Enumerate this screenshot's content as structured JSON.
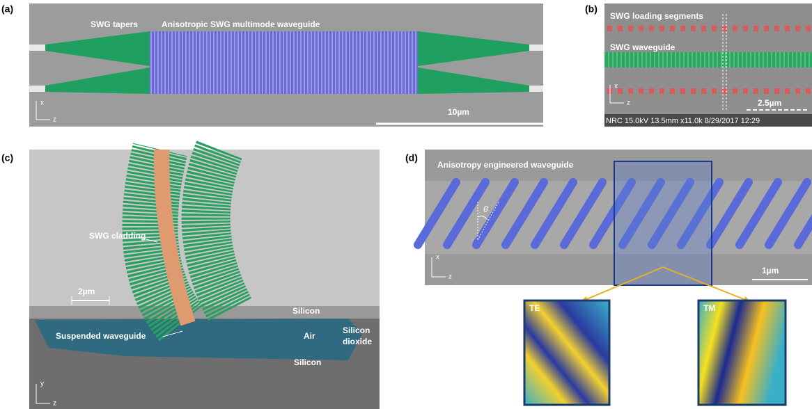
{
  "panel_a": {
    "label": "(a)",
    "tapers": "SWG tapers",
    "waveguide": "Anisotropic  SWG multimode waveguide",
    "scale": "10µm",
    "axis_vertical": "x",
    "axis_horizontal": "z"
  },
  "panel_b": {
    "label": "(b)",
    "loading": "SWG loading segments",
    "waveguide": "SWG waveguide",
    "scale": "2.5µm",
    "axis_vertical": "x",
    "axis_horizontal": "z",
    "footer": "NRC 15.0kV 13.5mm x11.0k 8/29/2017 12:29"
  },
  "panel_c": {
    "label": "(c)",
    "cladding": "SWG cladding",
    "scale": "2µm",
    "silicon_top": "Silicon",
    "suspended": "Suspended waveguide",
    "air": "Air",
    "dioxide": [
      "Silicon",
      "dioxide"
    ],
    "silicon_bottom": "Silicon",
    "axis_vertical": "y",
    "axis_horizontal": "z"
  },
  "panel_d": {
    "label": "(d)",
    "title": "Anisotropy engineered waveguide",
    "angle": "θ",
    "scale": "1µm",
    "axis_vertical": "x",
    "axis_horizontal": "z",
    "te": "TE",
    "tm": "TM"
  }
}
